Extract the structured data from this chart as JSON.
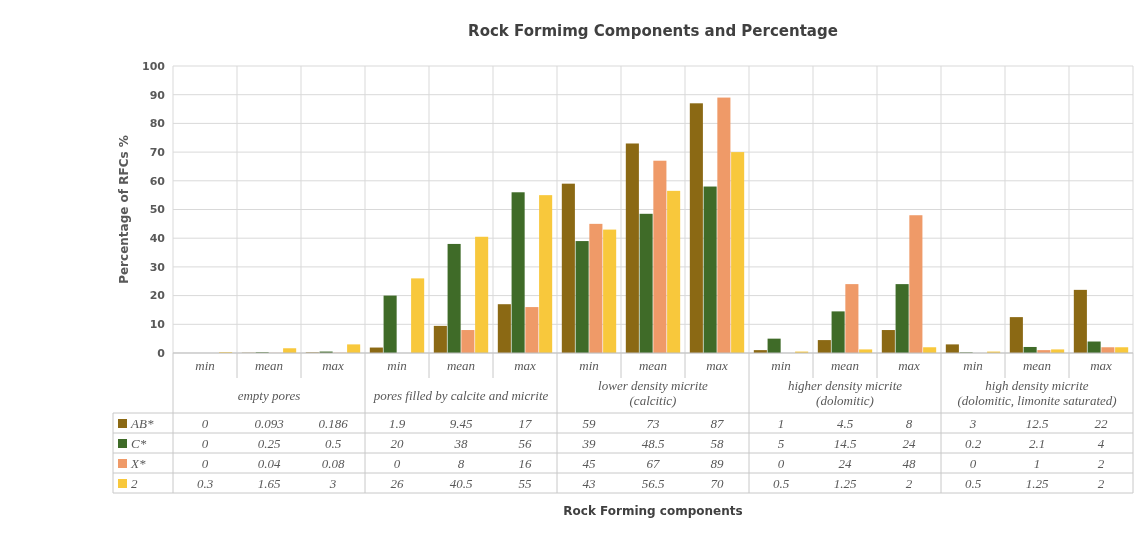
{
  "chart_data": {
    "type": "bar",
    "title": "Rock Formimg Components and Percentage",
    "ylabel": "Percentage of RFCs %",
    "categories": [
      "min",
      "mean",
      "max",
      "min",
      "mean",
      "max",
      "min",
      "mean",
      "max",
      "min",
      "mean",
      "max",
      "min",
      "mean",
      "max"
    ],
    "annotations": [
      "empty pores",
      "pores filled by calcite and micrite",
      "lower density micrite\n(calcitic)",
      "higher density micrite\n(dolomitic)",
      "high density micrite\n(dolomitic, limonite saturated)",
      "Rock Forming components"
    ],
    "series": [
      {
        "name": "AB*",
        "color": "#8b6914",
        "values": [
          0,
          0.093,
          0.186,
          1.9,
          9.45,
          17,
          59,
          73,
          87,
          1,
          4.5,
          8,
          3,
          12.5,
          22
        ]
      },
      {
        "name": "C*",
        "color": "#3f6b28",
        "values": [
          0,
          0.25,
          0.5,
          20,
          38,
          56,
          39,
          48.5,
          58,
          5,
          14.5,
          24,
          0.2,
          2.1,
          4
        ]
      },
      {
        "name": "X*",
        "color": "#ef9a68",
        "values": [
          0,
          0.04,
          0.08,
          0,
          8,
          16,
          45,
          67,
          89,
          0,
          24,
          48,
          0,
          1,
          2
        ]
      },
      {
        "name": "2",
        "color": "#f8c83c",
        "values": [
          0.3,
          1.65,
          3,
          26,
          40.5,
          55,
          43,
          56.5,
          70,
          0.5,
          1.25,
          2,
          0.5,
          1.25,
          2
        ]
      }
    ],
    "ylim": [
      0,
      100
    ],
    "yticks": [
      0,
      10,
      20,
      30,
      40,
      50,
      60,
      70,
      80,
      90,
      100
    ],
    "grid": true,
    "legend": "bottom",
    "data_labels": true
  }
}
